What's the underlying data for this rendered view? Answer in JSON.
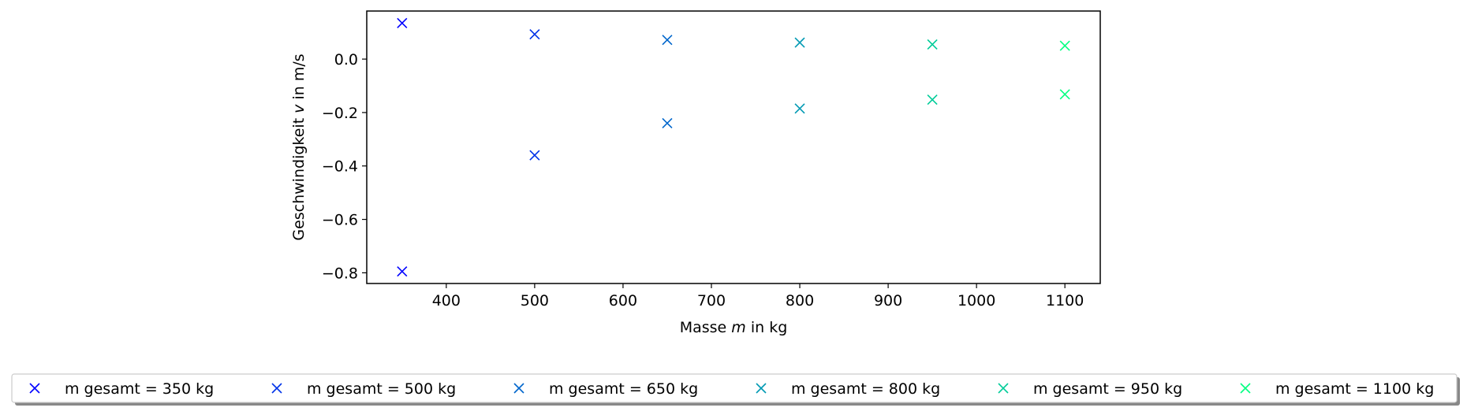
{
  "chart_data": {
    "type": "scatter",
    "title": "",
    "xlabel": {
      "prefix": "Masse ",
      "symbol": "m",
      "suffix": " in kg"
    },
    "ylabel": {
      "prefix": "Geschwindigkeit ",
      "symbol": "v",
      "suffix": " in m/s"
    },
    "xlim": [
      310,
      1140
    ],
    "ylim": [
      -0.84,
      0.18
    ],
    "xticks": [
      {
        "value": 400,
        "label": "400"
      },
      {
        "value": 500,
        "label": "500"
      },
      {
        "value": 600,
        "label": "600"
      },
      {
        "value": 700,
        "label": "700"
      },
      {
        "value": 800,
        "label": "800"
      },
      {
        "value": 900,
        "label": "900"
      },
      {
        "value": 1000,
        "label": "1000"
      },
      {
        "value": 1100,
        "label": "1100"
      }
    ],
    "yticks": [
      {
        "value": 0.0,
        "label": "0.0"
      },
      {
        "value": -0.2,
        "label": "−0.2"
      },
      {
        "value": -0.4,
        "label": "−0.4"
      },
      {
        "value": -0.6,
        "label": "−0.6"
      },
      {
        "value": -0.8,
        "label": "−0.8"
      }
    ],
    "marker": "x",
    "grid": false,
    "legend_placement": "bottom",
    "series": [
      {
        "name": "m gesamt = 350 kg",
        "color": "#0000ff",
        "points": [
          [
            350,
            0.135
          ],
          [
            350,
            -0.795
          ]
        ]
      },
      {
        "name": "m gesamt = 500 kg",
        "color": "#0033e8",
        "points": [
          [
            500,
            0.093
          ],
          [
            500,
            -0.36
          ]
        ]
      },
      {
        "name": "m gesamt = 650 kg",
        "color": "#0066cc",
        "points": [
          [
            650,
            0.072
          ],
          [
            650,
            -0.24
          ]
        ]
      },
      {
        "name": "m gesamt = 800 kg",
        "color": "#0099b3",
        "points": [
          [
            800,
            0.062
          ],
          [
            800,
            -0.185
          ]
        ]
      },
      {
        "name": "m gesamt = 950 kg",
        "color": "#00cc99",
        "points": [
          [
            950,
            0.055
          ],
          [
            950,
            -0.152
          ]
        ]
      },
      {
        "name": "m gesamt = 1100 kg",
        "color": "#00ff80",
        "points": [
          [
            1100,
            0.05
          ],
          [
            1100,
            -0.132
          ]
        ]
      }
    ]
  }
}
